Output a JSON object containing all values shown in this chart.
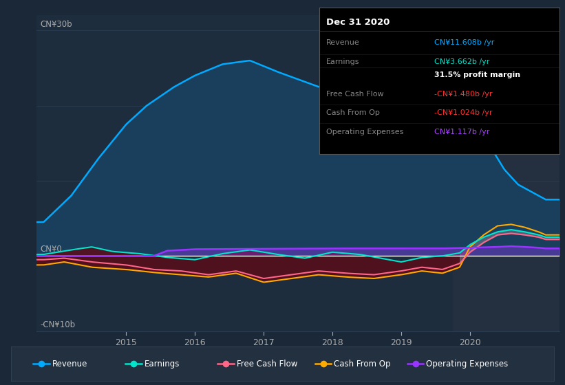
{
  "bg_color": "#1b2838",
  "plot_bg_color": "#1e2d3d",
  "grid_color": "#2a3d52",
  "zero_line_color": "#ffffff",
  "y_label_top": "CN¥30b",
  "y_label_zero": "CN¥0",
  "y_label_bottom": "-CN¥10b",
  "ylim": [
    -10,
    32
  ],
  "xlim_start": 2013.7,
  "xlim_end": 2021.3,
  "x_ticks": [
    2015,
    2016,
    2017,
    2018,
    2019,
    2020
  ],
  "highlight_start": 2019.75,
  "highlight_color": "#243040",
  "info_box": {
    "title": "Dec 31 2020",
    "title_color": "#ffffff",
    "bg_color": "#000000",
    "rows": [
      {
        "label": "Revenue",
        "value": "CN¥11.608b /yr",
        "value_color": "#00aaff"
      },
      {
        "label": "Earnings",
        "value": "CN¥3.662b /yr",
        "value_color": "#00e5cc"
      },
      {
        "label": "",
        "value": "31.5% profit margin",
        "value_color": "#ffffff",
        "bold": true
      },
      {
        "label": "Free Cash Flow",
        "value": "-CN¥1.480b /yr",
        "value_color": "#ff3333"
      },
      {
        "label": "Cash From Op",
        "value": "-CN¥1.024b /yr",
        "value_color": "#ff3333"
      },
      {
        "label": "Operating Expenses",
        "value": "CN¥1.117b /yr",
        "value_color": "#aa44ff"
      }
    ]
  },
  "legend": [
    {
      "label": "Revenue",
      "color": "#00aaff"
    },
    {
      "label": "Earnings",
      "color": "#00e5cc"
    },
    {
      "label": "Free Cash Flow",
      "color": "#ff6688"
    },
    {
      "label": "Cash From Op",
      "color": "#ffaa00"
    },
    {
      "label": "Operating Expenses",
      "color": "#9933ff"
    }
  ],
  "revenue_x": [
    2013.8,
    2014.2,
    2014.6,
    2015.0,
    2015.3,
    2015.7,
    2016.0,
    2016.4,
    2016.8,
    2017.2,
    2017.5,
    2017.8,
    2018.0,
    2018.3,
    2018.5,
    2018.7,
    2019.0,
    2019.3,
    2019.5,
    2019.7,
    2019.85,
    2020.0,
    2020.15,
    2020.3,
    2020.5,
    2020.7,
    2020.9,
    2021.1
  ],
  "revenue_y": [
    4.5,
    8.0,
    13.0,
    17.5,
    20.0,
    22.5,
    24.0,
    25.5,
    26.0,
    24.5,
    23.5,
    22.5,
    23.0,
    22.5,
    21.5,
    22.5,
    20.0,
    18.5,
    19.0,
    24.0,
    24.5,
    22.0,
    18.0,
    14.5,
    11.5,
    9.5,
    8.5,
    7.5
  ],
  "earnings_x": [
    2013.8,
    2014.2,
    2014.5,
    2014.8,
    2015.2,
    2015.6,
    2016.0,
    2016.4,
    2016.8,
    2017.2,
    2017.6,
    2018.0,
    2018.4,
    2018.7,
    2019.0,
    2019.3,
    2019.6,
    2019.85,
    2020.0,
    2020.2,
    2020.4,
    2020.6,
    2020.8,
    2021.0,
    2021.1
  ],
  "earnings_y": [
    0.2,
    0.8,
    1.2,
    0.6,
    0.3,
    -0.2,
    -0.5,
    0.3,
    0.8,
    0.2,
    -0.3,
    0.5,
    0.2,
    -0.3,
    -0.8,
    -0.2,
    0.0,
    0.4,
    1.5,
    2.5,
    3.2,
    3.5,
    3.2,
    2.8,
    2.5
  ],
  "fcf_x": [
    2013.8,
    2014.1,
    2014.5,
    2015.0,
    2015.4,
    2015.8,
    2016.2,
    2016.6,
    2017.0,
    2017.4,
    2017.8,
    2018.2,
    2018.6,
    2019.0,
    2019.3,
    2019.6,
    2019.85,
    2020.0,
    2020.2,
    2020.4,
    2020.6,
    2020.8,
    2021.0,
    2021.1
  ],
  "fcf_y": [
    -0.5,
    -0.3,
    -0.8,
    -1.2,
    -1.8,
    -2.0,
    -2.5,
    -2.0,
    -3.0,
    -2.5,
    -2.0,
    -2.3,
    -2.5,
    -2.0,
    -1.5,
    -1.8,
    -1.0,
    0.5,
    1.8,
    2.8,
    3.0,
    2.8,
    2.5,
    2.2
  ],
  "cop_x": [
    2013.8,
    2014.1,
    2014.5,
    2015.0,
    2015.4,
    2015.8,
    2016.2,
    2016.6,
    2017.0,
    2017.4,
    2017.8,
    2018.2,
    2018.6,
    2019.0,
    2019.3,
    2019.6,
    2019.85,
    2020.0,
    2020.2,
    2020.4,
    2020.6,
    2020.8,
    2021.0,
    2021.1
  ],
  "cop_y": [
    -1.2,
    -0.8,
    -1.5,
    -1.8,
    -2.2,
    -2.5,
    -2.8,
    -2.3,
    -3.5,
    -3.0,
    -2.5,
    -2.8,
    -3.0,
    -2.5,
    -2.0,
    -2.3,
    -1.5,
    1.2,
    2.8,
    4.0,
    4.2,
    3.8,
    3.2,
    2.8
  ],
  "opex_x": [
    2013.8,
    2015.4,
    2015.6,
    2016.0,
    2017.0,
    2018.0,
    2019.0,
    2019.6,
    2019.85,
    2020.0,
    2020.2,
    2020.4,
    2020.6,
    2020.8,
    2021.0,
    2021.1
  ],
  "opex_y": [
    0.0,
    0.0,
    0.7,
    0.9,
    0.95,
    1.0,
    1.0,
    1.0,
    1.05,
    1.1,
    1.15,
    1.2,
    1.3,
    1.2,
    1.1,
    1.0
  ]
}
